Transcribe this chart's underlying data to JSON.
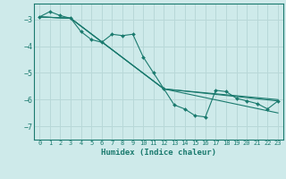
{
  "xlabel": "Humidex (Indice chaleur)",
  "background_color": "#ceeaea",
  "grid_color": "#b8d8d8",
  "line_color": "#1a7a6e",
  "marker_color": "#1a7a6e",
  "xlim": [
    -0.5,
    23.5
  ],
  "ylim": [
    -7.5,
    -2.4
  ],
  "yticks": [
    -7,
    -6,
    -5,
    -4,
    -3
  ],
  "xticks": [
    0,
    1,
    2,
    3,
    4,
    5,
    6,
    7,
    8,
    9,
    10,
    11,
    12,
    13,
    14,
    15,
    16,
    17,
    18,
    19,
    20,
    21,
    22,
    23
  ],
  "series": [
    {
      "x": [
        0,
        1,
        2,
        3,
        4,
        5,
        6,
        7,
        8,
        9,
        10,
        11,
        12,
        13,
        14,
        15,
        16,
        17,
        18,
        19,
        20,
        21,
        22,
        23
      ],
      "y": [
        -2.9,
        -2.7,
        -2.85,
        -2.95,
        -3.45,
        -3.75,
        -3.85,
        -3.55,
        -3.6,
        -3.55,
        -4.4,
        -5.0,
        -5.6,
        -6.2,
        -6.35,
        -6.6,
        -6.65,
        -5.65,
        -5.7,
        -5.95,
        -6.05,
        -6.15,
        -6.35,
        -6.05
      ],
      "has_markers": true
    },
    {
      "x": [
        0,
        3,
        12,
        23
      ],
      "y": [
        -2.9,
        -2.95,
        -5.6,
        -6.05
      ],
      "has_markers": false
    },
    {
      "x": [
        0,
        3,
        12,
        23
      ],
      "y": [
        -2.9,
        -2.95,
        -5.6,
        -6.5
      ],
      "has_markers": false
    },
    {
      "x": [
        0,
        3,
        12,
        23
      ],
      "y": [
        -2.9,
        -2.95,
        -5.6,
        -6.0
      ],
      "has_markers": false
    }
  ]
}
